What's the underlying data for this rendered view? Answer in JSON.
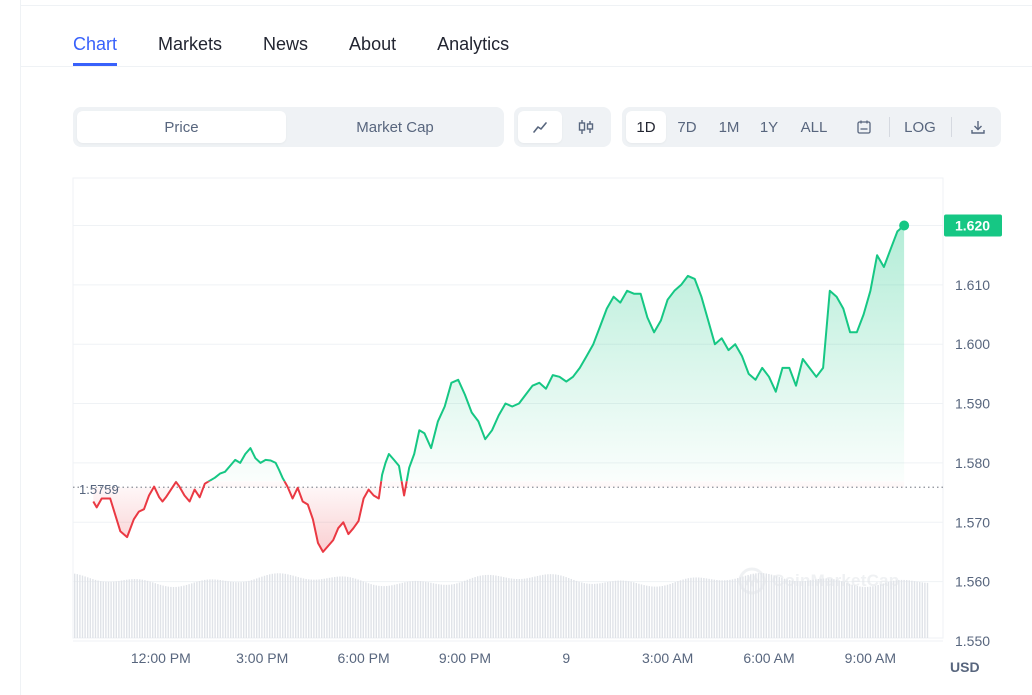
{
  "tabs": [
    {
      "label": "Chart",
      "active": true
    },
    {
      "label": "Markets",
      "active": false
    },
    {
      "label": "News",
      "active": false
    },
    {
      "label": "About",
      "active": false
    },
    {
      "label": "Analytics",
      "active": false
    }
  ],
  "metric_toggle": {
    "options": [
      "Price",
      "Market Cap"
    ],
    "selected": "Price"
  },
  "chart_type_toggle": {
    "options": [
      "line-chart-icon",
      "candlestick-icon"
    ],
    "selected": "line-chart-icon"
  },
  "range": {
    "options": [
      "1D",
      "7D",
      "1M",
      "1Y",
      "ALL"
    ],
    "selected": "1D",
    "calendar_icon": "calendar-icon",
    "log_label": "LOG",
    "download_icon": "download-icon"
  },
  "currency_label": "USD",
  "watermark": "CoinMarketCap",
  "colors": {
    "accent": "#3861fb",
    "up": "#16c784",
    "down": "#ea3943",
    "badge": "#16c784"
  },
  "chart_data": {
    "type": "line",
    "y_axis_labels": [
      "1.620",
      "1.610",
      "1.600",
      "1.590",
      "1.580",
      "1.570",
      "1.560",
      "1.550"
    ],
    "ylim": [
      1.5505,
      1.628
    ],
    "x_axis_labels": [
      "12:00 PM",
      "3:00 PM",
      "6:00 PM",
      "9:00 PM",
      "9",
      "3:00 AM",
      "6:00 AM",
      "9:00 AM"
    ],
    "x_tick_hours": [
      2,
      5,
      8,
      11,
      14,
      17,
      20,
      23
    ],
    "xlim_hours": [
      -0.6,
      25.15
    ],
    "reference_price": 1.5759,
    "reference_label": "1.5759",
    "current_price": 1.62,
    "current_label": "1.620",
    "series": [
      {
        "x_hours": [
          0.0,
          0.1,
          0.25,
          0.5,
          0.8,
          1.0,
          1.2,
          1.35,
          1.5,
          1.65,
          1.8,
          1.95,
          2.05,
          2.15,
          2.3,
          2.45,
          2.55,
          2.7,
          2.85,
          3.0,
          3.15,
          3.3,
          3.45,
          3.6,
          3.75,
          3.9,
          4.05,
          4.2,
          4.35,
          4.5,
          4.65,
          4.8,
          4.95,
          5.1,
          5.25,
          5.4,
          5.5,
          5.6,
          5.75,
          5.9,
          6.05,
          6.2,
          6.35,
          6.5,
          6.65,
          6.8,
          6.95,
          7.1,
          7.25,
          7.4,
          7.55,
          7.7,
          7.85,
          8.0,
          8.15,
          8.3,
          8.45,
          8.55,
          8.65,
          8.75,
          8.9,
          9.05,
          9.2,
          9.35,
          9.5,
          9.65,
          9.8,
          10.0,
          10.2,
          10.4,
          10.6,
          10.8,
          11.0,
          11.2,
          11.4,
          11.6,
          11.8,
          12.0,
          12.2,
          12.4,
          12.6,
          12.8,
          13.0,
          13.2,
          13.4,
          13.6,
          13.8,
          14.0,
          14.2,
          14.4,
          14.6,
          14.8,
          15.0,
          15.2,
          15.4,
          15.6,
          15.8,
          16.0,
          16.2,
          16.4,
          16.6,
          16.8,
          17.0,
          17.2,
          17.4,
          17.6,
          17.8,
          18.0,
          18.2,
          18.4,
          18.6,
          18.8,
          19.0,
          19.2,
          19.4,
          19.6,
          19.8,
          20.0,
          20.2,
          20.4,
          20.6,
          20.8,
          21.0,
          21.2,
          21.4,
          21.6,
          21.8,
          22.0,
          22.2,
          22.4,
          22.6,
          22.8,
          23.0,
          23.2,
          23.4,
          23.6,
          23.8,
          24.0
        ],
        "values": [
          1.5735,
          1.5725,
          1.574,
          1.574,
          1.5685,
          1.5675,
          1.5705,
          1.5718,
          1.5722,
          1.5745,
          1.576,
          1.5742,
          1.5735,
          1.5742,
          1.5755,
          1.5768,
          1.576,
          1.5745,
          1.5735,
          1.5755,
          1.5742,
          1.5765,
          1.577,
          1.5775,
          1.5782,
          1.5785,
          1.5795,
          1.5805,
          1.58,
          1.5815,
          1.5825,
          1.5808,
          1.58,
          1.5805,
          1.5804,
          1.58,
          1.5788,
          1.5775,
          1.576,
          1.574,
          1.5758,
          1.5735,
          1.573,
          1.5705,
          1.5665,
          1.565,
          1.566,
          1.567,
          1.569,
          1.57,
          1.568,
          1.569,
          1.5702,
          1.574,
          1.5755,
          1.5745,
          1.574,
          1.578,
          1.58,
          1.5815,
          1.5805,
          1.5795,
          1.5745,
          1.5792,
          1.5815,
          1.5855,
          1.585,
          1.5825,
          1.587,
          1.5895,
          1.5935,
          1.594,
          1.5915,
          1.5885,
          1.587,
          1.584,
          1.5855,
          1.588,
          1.59,
          1.5895,
          1.59,
          1.5915,
          1.593,
          1.5935,
          1.5925,
          1.5948,
          1.5945,
          1.5937,
          1.5945,
          1.596,
          1.598,
          1.6,
          1.603,
          1.606,
          1.608,
          1.607,
          1.609,
          1.6085,
          1.6085,
          1.6045,
          1.602,
          1.604,
          1.6075,
          1.609,
          1.61,
          1.6115,
          1.611,
          1.608,
          1.604,
          1.6,
          1.601,
          1.599,
          1.6,
          1.598,
          1.595,
          1.594,
          1.596,
          1.5945,
          1.592,
          1.596,
          1.596,
          1.593,
          1.5975,
          1.596,
          1.5945,
          1.596,
          1.609,
          1.608,
          1.606,
          1.602,
          1.602,
          1.605,
          1.609,
          1.615,
          1.613,
          1.616,
          1.619,
          1.62
        ]
      }
    ]
  }
}
